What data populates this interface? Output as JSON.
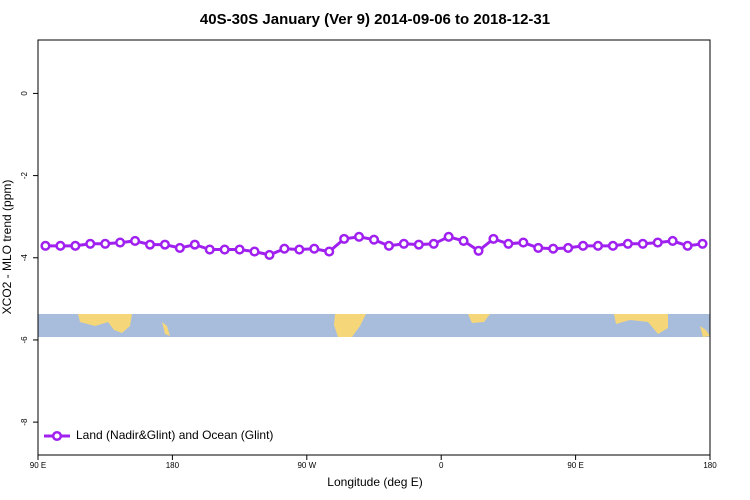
{
  "chart_data": {
    "type": "line",
    "title": "40S-30S January (Ver 9)   2014-09-06 to 2018-12-31",
    "x_label": "Longitude (deg E)",
    "y_label": "XCO2 - MLO trend (ppm)",
    "x": [
      95,
      105,
      115,
      125,
      135,
      145,
      155,
      165,
      175,
      185,
      195,
      205,
      215,
      225,
      235,
      245,
      255,
      265,
      275,
      285,
      295,
      305,
      315,
      325,
      335,
      345,
      355,
      365,
      375,
      385,
      395,
      405,
      415,
      425,
      435,
      445,
      455,
      465,
      475,
      485,
      495,
      505,
      515,
      525,
      535
    ],
    "series": [
      {
        "name": "Land (Nadir&Glint) and Ocean (Glint)",
        "color": "#a020f0",
        "values": [
          -3.71,
          -3.71,
          -3.71,
          -3.66,
          -3.66,
          -3.63,
          -3.59,
          -3.68,
          -3.68,
          -3.76,
          -3.68,
          -3.8,
          -3.8,
          -3.8,
          -3.85,
          -3.93,
          -3.78,
          -3.8,
          -3.78,
          -3.85,
          -3.54,
          -3.49,
          -3.56,
          -3.71,
          -3.66,
          -3.68,
          -3.66,
          -3.49,
          -3.59,
          -3.83,
          -3.54,
          -3.66,
          -3.63,
          -3.76,
          -3.78,
          -3.76,
          -3.71,
          -3.71,
          -3.71,
          -3.66,
          -3.66,
          -3.63,
          -3.59,
          -3.71,
          -3.66
        ]
      }
    ],
    "xlim": [
      90,
      540
    ],
    "xticks": [
      {
        "value": 90,
        "label": "90 E"
      },
      {
        "value": 180,
        "label": "180"
      },
      {
        "value": 270,
        "label": "90 W"
      },
      {
        "value": 360,
        "label": "0"
      },
      {
        "value": 450,
        "label": "90 E"
      },
      {
        "value": 540,
        "label": "180"
      }
    ],
    "ylim": [
      -8.8,
      1.3
    ],
    "yticks": [
      0,
      -2,
      -4,
      -6,
      -8
    ],
    "legend": "bottom-left"
  }
}
